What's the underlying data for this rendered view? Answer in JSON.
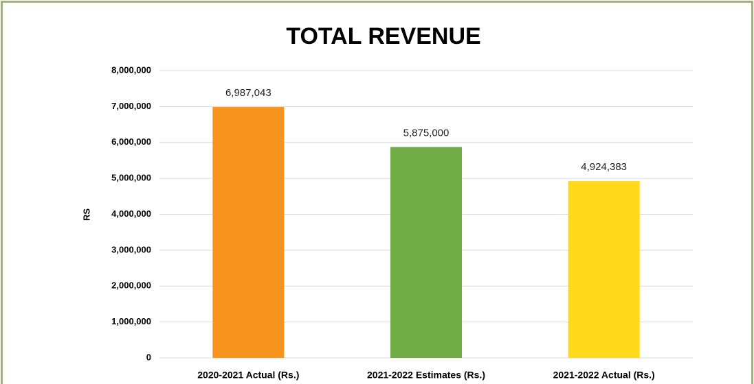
{
  "chart_data": {
    "type": "bar",
    "title": "TOTAL REVENUE",
    "y_label": "RS",
    "categories": [
      "2020-2021 Actual (Rs.)",
      "2021-2022 Estimates (Rs.)",
      "2021-2022 Actual (Rs.)"
    ],
    "values": [
      6987043,
      5875000,
      4924383
    ],
    "value_labels": [
      "6,987,043",
      "5,875,000",
      "4,924,383"
    ],
    "colors": [
      "#f7941d",
      "#70ad47",
      "#ffd91a"
    ],
    "ylim": [
      0,
      8000000
    ],
    "yticks": [
      0,
      {
        "value": 1000000,
        "label": "1,000,000"
      },
      {
        "value": 2000000,
        "label": "2,000,000"
      },
      {
        "value": 3000000,
        "label": "3,000,000"
      },
      {
        "value": 4000000,
        "label": "4,000,000"
      },
      {
        "value": 5000000,
        "label": "5,000,000"
      },
      {
        "value": 6000000,
        "label": "6,000,000"
      },
      {
        "value": 7000000,
        "label": "7,000,000"
      },
      {
        "value": 8000000,
        "label": "8,000,000"
      }
    ],
    "grid": true
  }
}
